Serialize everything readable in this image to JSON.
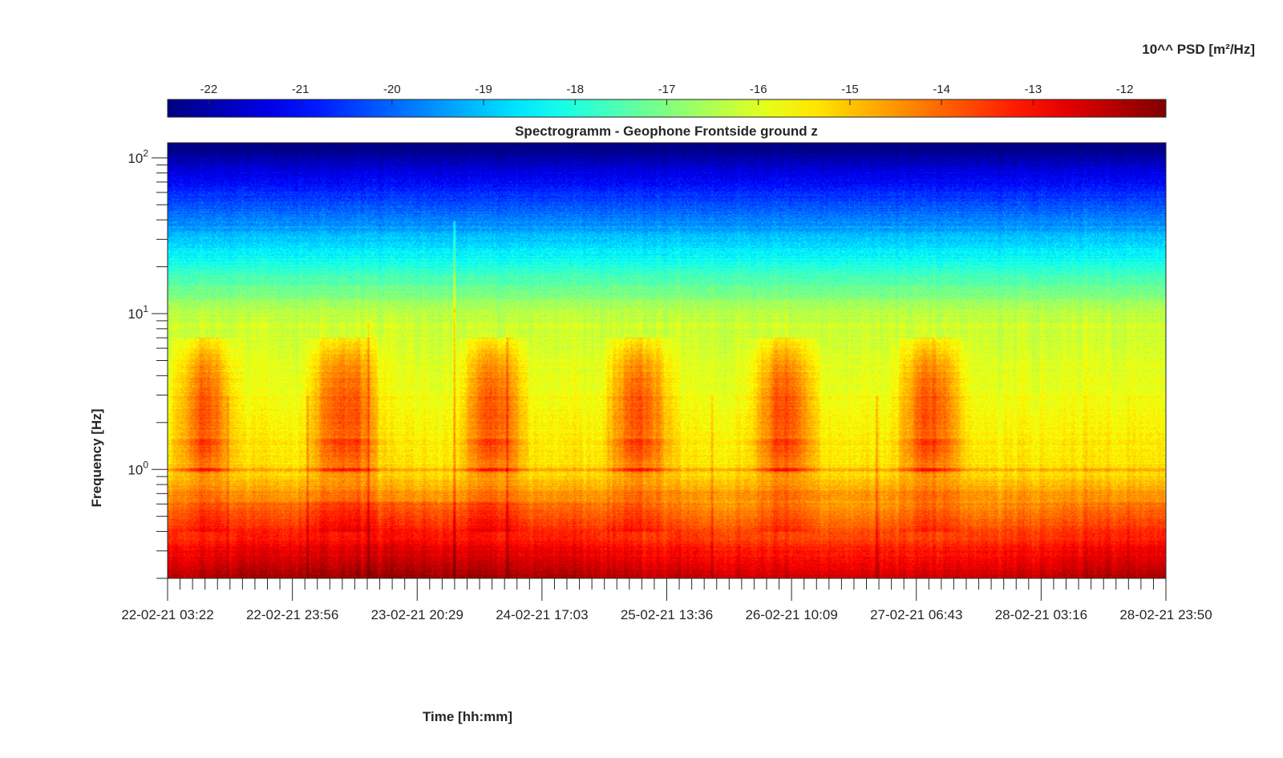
{
  "chart_data": {
    "type": "heatmap",
    "title": "Spectrogramm - Geophone Frontside ground z",
    "xlabel": "Time [hh:mm]",
    "ylabel": "Frequency [Hz]",
    "colorbar": {
      "title": "10^^ PSD [m²/Hz]",
      "ticks": [
        -22,
        -21,
        -20,
        -19,
        -18,
        -17,
        -16,
        -15,
        -14,
        -13,
        -12
      ],
      "range": [
        -22.45,
        -11.55
      ],
      "colormap": "jet",
      "placement": "top"
    },
    "x_ticks": [
      "22-02-21 03:22",
      "22-02-21 23:56",
      "23-02-21 20:29",
      "24-02-21 17:03",
      "25-02-21 13:36",
      "26-02-21 10:09",
      "27-02-21 06:43",
      "28-02-21 03:16",
      "28-02-21 23:50"
    ],
    "y_scale": "log",
    "y_ticks": [
      {
        "value": 1,
        "base": "10",
        "exp": "0"
      },
      {
        "value": 10,
        "base": "10",
        "exp": "1"
      },
      {
        "value": 100,
        "base": "10",
        "exp": "2"
      }
    ],
    "ylim": [
      0.2,
      125
    ],
    "xlim": [
      "22-02-21 03:22",
      "28-02-21 23:50"
    ],
    "grid": false,
    "features": {
      "daily_activity_band_hz": [
        1.5,
        5
      ],
      "microseism_band_hz": [
        0.2,
        0.7
      ],
      "line_at_hz": 1.0,
      "activity_periods": [
        {
          "from": "22-02-21 06:00",
          "to": "22-02-21 13:00"
        },
        {
          "from": "23-02-21 04:00",
          "to": "23-02-21 13:00"
        },
        {
          "from": "24-02-21 05:00",
          "to": "24-02-21 13:00"
        },
        {
          "from": "25-02-21 05:00",
          "to": "25-02-21 13:00"
        },
        {
          "from": "26-02-21 05:00",
          "to": "26-02-21 13:00"
        },
        {
          "from": "27-02-21 05:00",
          "to": "27-02-21 13:00"
        }
      ]
    }
  }
}
